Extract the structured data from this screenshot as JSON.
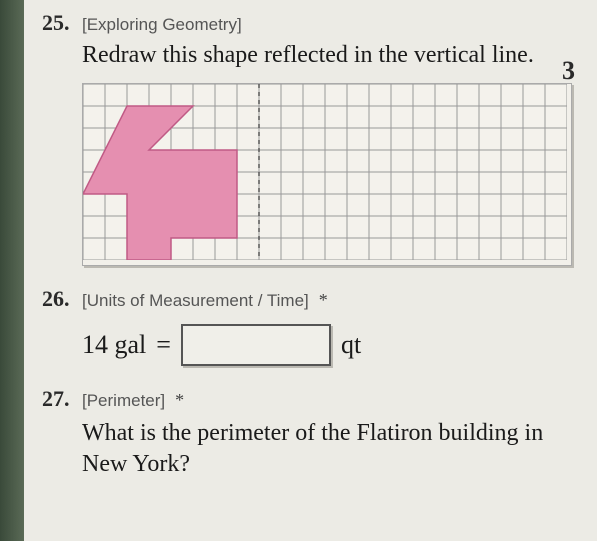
{
  "left_edge_color": "#4a5a48",
  "page_bg": "#ecebe5",
  "side_number": "3",
  "problems": {
    "p25": {
      "number": "25.",
      "category": "[Exploring Geometry]",
      "prompt": "Redraw this shape reflected in the vertical line.",
      "grid": {
        "cols": 22,
        "rows": 8,
        "cell": 22,
        "mirror_col": 8,
        "stroke": "#999",
        "mirror_stroke": "#555",
        "shape_fill": "#e58fb0",
        "shape_stroke": "#c05a85",
        "shape_points": [
          [
            2,
            1
          ],
          [
            5,
            1
          ],
          [
            3,
            3
          ],
          [
            7,
            3
          ],
          [
            7,
            7
          ],
          [
            4,
            7
          ],
          [
            4,
            8
          ],
          [
            2,
            8
          ],
          [
            2,
            5
          ],
          [
            0,
            5
          ]
        ]
      }
    },
    "p26": {
      "number": "26.",
      "category": "[Units of Measurement / Time]",
      "asterisk": "*",
      "value_left": "14 gal",
      "equals": "=",
      "unit_right": "qt"
    },
    "p27": {
      "number": "27.",
      "category": "[Perimeter]",
      "asterisk": "*",
      "prompt": "What is the perimeter of the Flatiron building in New York?"
    }
  }
}
